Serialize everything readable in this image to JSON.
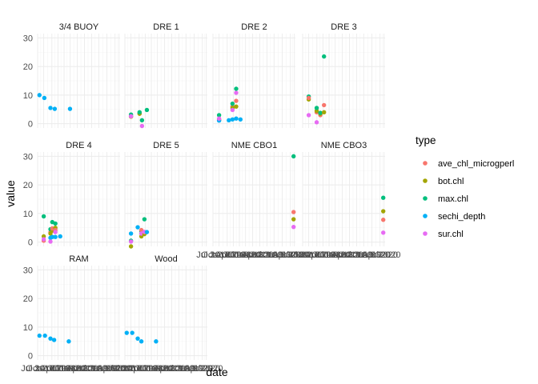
{
  "chart_data": {
    "type": "scatter",
    "facet_layout": "wrap",
    "x_label": "date",
    "y_label": "value",
    "y_range": [
      -1.5,
      31.5
    ],
    "y_ticks": [
      0,
      10,
      20,
      30
    ],
    "x_range": [
      0,
      13.5
    ],
    "x_tick_labels": [
      {
        "x": 0,
        "label": "Jul 2017"
      },
      {
        "x": 1,
        "label": "Oct 2017"
      },
      {
        "x": 2.33,
        "label": "Jan 2018"
      },
      {
        "x": 3.33,
        "label": "Apr 2018"
      },
      {
        "x": 4.33,
        "label": "Jul 2018"
      },
      {
        "x": 5.33,
        "label": "Oct 2018"
      },
      {
        "x": 6.5,
        "label": "Jan 2019"
      },
      {
        "x": 7.67,
        "label": "Apr 2019"
      },
      {
        "x": 8.83,
        "label": "Jul 2019"
      },
      {
        "x": 10,
        "label": "Oct 2019"
      },
      {
        "x": 11.33,
        "label": "Jan 2020"
      },
      {
        "x": 12.67,
        "label": "Apr 2020"
      },
      {
        "x": 13.33,
        "label": "Jul 2020"
      }
    ],
    "grid": true,
    "legend": {
      "title": "type",
      "position": "right"
    },
    "series": [
      {
        "name": "ave_chl_microgperl",
        "color": "#F8766D"
      },
      {
        "name": "bot.chl",
        "color": "#A3A500"
      },
      {
        "name": "max.chl",
        "color": "#00BF7D"
      },
      {
        "name": "sechi_depth",
        "color": "#00B0F6"
      },
      {
        "name": "sur.chl",
        "color": "#E76BF3"
      }
    ],
    "facets": [
      {
        "name": "3/4 BUOY",
        "points": [
          {
            "s": 3,
            "x": 0.3,
            "y": 10
          },
          {
            "s": 3,
            "x": 1.1,
            "y": 9
          },
          {
            "s": 3,
            "x": 2.1,
            "y": 5.5
          },
          {
            "s": 3,
            "x": 2.8,
            "y": 5.2
          },
          {
            "s": 3,
            "x": 5.3,
            "y": 5.2
          }
        ]
      },
      {
        "name": "DRE 1",
        "points": [
          {
            "s": 0,
            "x": 1.0,
            "y": 2.5
          },
          {
            "s": 1,
            "x": 1.0,
            "y": 2.5
          },
          {
            "s": 2,
            "x": 1.0,
            "y": 3.2
          },
          {
            "s": 4,
            "x": 1.0,
            "y": 2.6
          },
          {
            "s": 0,
            "x": 2.4,
            "y": 3.5
          },
          {
            "s": 1,
            "x": 2.4,
            "y": 3.5
          },
          {
            "s": 2,
            "x": 2.4,
            "y": 4.0
          },
          {
            "s": 2,
            "x": 2.8,
            "y": 1.2
          },
          {
            "s": 4,
            "x": 2.8,
            "y": -0.8
          },
          {
            "s": 2,
            "x": 3.6,
            "y": 4.8
          }
        ]
      },
      {
        "name": "DRE 2",
        "points": [
          {
            "s": 0,
            "x": 1.0,
            "y": 1.5
          },
          {
            "s": 1,
            "x": 1.0,
            "y": 1.2
          },
          {
            "s": 2,
            "x": 1.0,
            "y": 3.0
          },
          {
            "s": 3,
            "x": 1.0,
            "y": 1.1
          },
          {
            "s": 4,
            "x": 1.0,
            "y": 1.8
          },
          {
            "s": 3,
            "x": 2.6,
            "y": 1.2
          },
          {
            "s": 0,
            "x": 3.2,
            "y": 6.0
          },
          {
            "s": 1,
            "x": 3.2,
            "y": 5.5
          },
          {
            "s": 2,
            "x": 3.2,
            "y": 7.0
          },
          {
            "s": 4,
            "x": 3.2,
            "y": 4.8
          },
          {
            "s": 3,
            "x": 3.2,
            "y": 1.5
          },
          {
            "s": 0,
            "x": 3.8,
            "y": 8.0
          },
          {
            "s": 1,
            "x": 3.8,
            "y": 6.0
          },
          {
            "s": 2,
            "x": 3.8,
            "y": 12.2
          },
          {
            "s": 4,
            "x": 3.8,
            "y": 10.8
          },
          {
            "s": 3,
            "x": 3.8,
            "y": 1.8
          },
          {
            "s": 3,
            "x": 4.5,
            "y": 1.5
          }
        ]
      },
      {
        "name": "DRE 3",
        "points": [
          {
            "s": 1,
            "x": 1.0,
            "y": 8.5
          },
          {
            "s": 2,
            "x": 1.0,
            "y": 9.5
          },
          {
            "s": 4,
            "x": 1.0,
            "y": 3.0
          },
          {
            "s": 0,
            "x": 1.0,
            "y": 9.0
          },
          {
            "s": 0,
            "x": 2.3,
            "y": 4.0
          },
          {
            "s": 1,
            "x": 2.3,
            "y": 4.5
          },
          {
            "s": 2,
            "x": 2.3,
            "y": 5.5
          },
          {
            "s": 4,
            "x": 2.3,
            "y": 0.5
          },
          {
            "s": 0,
            "x": 2.9,
            "y": 3.0
          },
          {
            "s": 1,
            "x": 2.9,
            "y": 3.5
          },
          {
            "s": 2,
            "x": 2.9,
            "y": 3.8
          },
          {
            "s": 0,
            "x": 3.5,
            "y": 6.5
          },
          {
            "s": 1,
            "x": 3.5,
            "y": 4.0
          },
          {
            "s": 2,
            "x": 3.5,
            "y": 23.5
          }
        ]
      },
      {
        "name": "DRE 4",
        "points": [
          {
            "s": 0,
            "x": 1.0,
            "y": 0.5
          },
          {
            "s": 1,
            "x": 1.0,
            "y": 2.0
          },
          {
            "s": 2,
            "x": 1.0,
            "y": 9.0
          },
          {
            "s": 4,
            "x": 1.0,
            "y": 1.0
          },
          {
            "s": 0,
            "x": 2.1,
            "y": 3.5
          },
          {
            "s": 1,
            "x": 2.1,
            "y": 3.0
          },
          {
            "s": 2,
            "x": 2.1,
            "y": 4.5
          },
          {
            "s": 3,
            "x": 2.1,
            "y": 1.5
          },
          {
            "s": 4,
            "x": 2.1,
            "y": 0.2
          },
          {
            "s": 1,
            "x": 2.4,
            "y": 4.0
          },
          {
            "s": 0,
            "x": 2.4,
            "y": 4.8
          },
          {
            "s": 2,
            "x": 2.4,
            "y": 7.0
          },
          {
            "s": 3,
            "x": 2.4,
            "y": 1.8
          },
          {
            "s": 1,
            "x": 2.9,
            "y": 5.0
          },
          {
            "s": 0,
            "x": 2.9,
            "y": 4.2
          },
          {
            "s": 2,
            "x": 2.9,
            "y": 6.5
          },
          {
            "s": 3,
            "x": 2.9,
            "y": 1.8
          },
          {
            "s": 4,
            "x": 2.9,
            "y": 3.5
          },
          {
            "s": 3,
            "x": 3.7,
            "y": 2.0
          }
        ]
      },
      {
        "name": "DRE 5",
        "points": [
          {
            "s": 1,
            "x": 1.0,
            "y": -1.5
          },
          {
            "s": 2,
            "x": 1.0,
            "y": 0.5
          },
          {
            "s": 3,
            "x": 1.0,
            "y": 3.0
          },
          {
            "s": 4,
            "x": 1.0,
            "y": 0.2
          },
          {
            "s": 3,
            "x": 2.1,
            "y": 5.2
          },
          {
            "s": 2,
            "x": 2.7,
            "y": 3.8
          },
          {
            "s": 1,
            "x": 2.7,
            "y": 2.0
          },
          {
            "s": 0,
            "x": 2.7,
            "y": 4.2
          },
          {
            "s": 4,
            "x": 2.7,
            "y": 3.0
          },
          {
            "s": 2,
            "x": 3.2,
            "y": 8.0
          },
          {
            "s": 1,
            "x": 3.2,
            "y": 2.8
          },
          {
            "s": 0,
            "x": 3.2,
            "y": 3.5
          },
          {
            "s": 4,
            "x": 3.2,
            "y": 3.6
          },
          {
            "s": 3,
            "x": 3.6,
            "y": 3.5
          }
        ]
      },
      {
        "name": "NME CBO1",
        "points": [
          {
            "s": 2,
            "x": 13.2,
            "y": 30.0
          },
          {
            "s": 0,
            "x": 13.2,
            "y": 10.5
          },
          {
            "s": 1,
            "x": 13.2,
            "y": 8.0
          },
          {
            "s": 4,
            "x": 13.2,
            "y": 5.3
          }
        ]
      },
      {
        "name": "NME CBO3",
        "points": [
          {
            "s": 2,
            "x": 13.2,
            "y": 15.5
          },
          {
            "s": 1,
            "x": 13.2,
            "y": 10.8
          },
          {
            "s": 0,
            "x": 13.2,
            "y": 7.8
          },
          {
            "s": 4,
            "x": 13.2,
            "y": 3.3
          }
        ]
      },
      {
        "name": "RAM",
        "points": [
          {
            "s": 3,
            "x": 0.3,
            "y": 7.0
          },
          {
            "s": 3,
            "x": 1.2,
            "y": 7.0
          },
          {
            "s": 3,
            "x": 2.1,
            "y": 6.0
          },
          {
            "s": 3,
            "x": 2.7,
            "y": 5.5
          },
          {
            "s": 3,
            "x": 5.1,
            "y": 5.0
          }
        ]
      },
      {
        "name": "Wood",
        "points": [
          {
            "s": 3,
            "x": 0.3,
            "y": 8.0
          },
          {
            "s": 3,
            "x": 1.2,
            "y": 8.0
          },
          {
            "s": 3,
            "x": 2.1,
            "y": 6.0
          },
          {
            "s": 3,
            "x": 2.7,
            "y": 5.0
          },
          {
            "s": 3,
            "x": 5.1,
            "y": 5.0
          }
        ]
      }
    ]
  }
}
